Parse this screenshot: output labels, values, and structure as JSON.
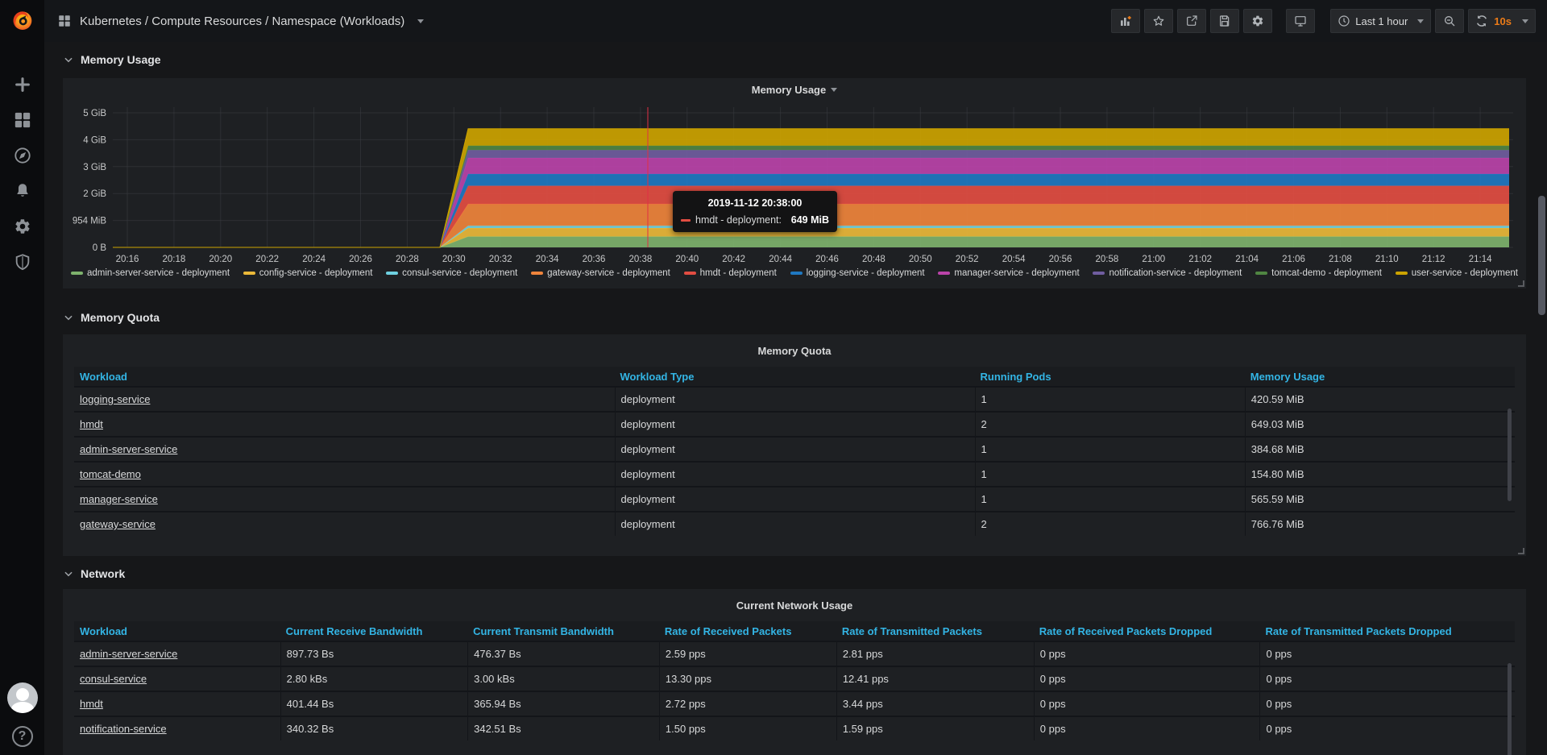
{
  "navbar": {
    "dashboard_title": "Kubernetes / Compute Resources / Namespace (Workloads)",
    "time_range_label": "Last 1 hour",
    "refresh_interval_label": "10s"
  },
  "sections": {
    "memory_usage": "Memory Usage",
    "memory_quota": "Memory Quota",
    "network": "Network"
  },
  "memory_usage_panel": {
    "title": "Memory Usage",
    "tooltip": {
      "timestamp": "2019-11-12 20:38:00",
      "series_label": "hmdt - deployment:",
      "value": "649 MiB",
      "series_color": "#E24D42"
    },
    "chart_data": {
      "type": "area",
      "stacked": true,
      "title": "Memory Usage",
      "x_tick_labels": [
        "20:16",
        "20:18",
        "20:20",
        "20:22",
        "20:24",
        "20:26",
        "20:28",
        "20:30",
        "20:32",
        "20:34",
        "20:36",
        "20:38",
        "20:40",
        "20:42",
        "20:44",
        "20:46",
        "20:48",
        "20:50",
        "20:52",
        "20:54",
        "20:56",
        "20:58",
        "21:00",
        "21:02",
        "21:04",
        "21:06",
        "21:08",
        "21:10",
        "21:12",
        "21:14"
      ],
      "y_tick_labels": [
        "0 B",
        "954 MiB",
        "2 GiB",
        "3 GiB",
        "4 GiB",
        "5 GiB"
      ],
      "y_tick_step_gb": 1,
      "rise_start_time": "20:29",
      "rise_full_time": "20:31",
      "crosshair_time": "20:38",
      "grid": true,
      "legend_position": "bottom",
      "series": [
        {
          "name": "admin-server-service - deployment",
          "color": "#7EB26D",
          "steady_mib": 385,
          "before_rise_mib": 0
        },
        {
          "name": "config-service - deployment",
          "color": "#EAB839",
          "steady_mib": 300,
          "before_rise_mib": 0
        },
        {
          "name": "consul-service - deployment",
          "color": "#6ED0E0",
          "steady_mib": 80,
          "before_rise_mib": 0
        },
        {
          "name": "gateway-service - deployment",
          "color": "#EF843C",
          "steady_mib": 767,
          "before_rise_mib": 0
        },
        {
          "name": "hmdt - deployment",
          "color": "#E24D42",
          "steady_mib": 649,
          "before_rise_mib": 0
        },
        {
          "name": "logging-service - deployment",
          "color": "#1F78C1",
          "steady_mib": 421,
          "before_rise_mib": 0
        },
        {
          "name": "manager-service - deployment",
          "color": "#BA43A9",
          "steady_mib": 566,
          "before_rise_mib": 0
        },
        {
          "name": "notification-service - deployment",
          "color": "#705DA0",
          "steady_mib": 280,
          "before_rise_mib": 0
        },
        {
          "name": "tomcat-demo - deployment",
          "color": "#508642",
          "steady_mib": 155,
          "before_rise_mib": 0
        },
        {
          "name": "user-service - deployment",
          "color": "#CCA300",
          "steady_mib": 600,
          "before_rise_mib": 0
        }
      ]
    }
  },
  "memory_quota_panel": {
    "title": "Memory Quota",
    "columns": [
      "Workload",
      "Workload Type",
      "Running Pods",
      "Memory Usage"
    ],
    "rows": [
      [
        "logging-service",
        "deployment",
        "1",
        "420.59 MiB"
      ],
      [
        "hmdt",
        "deployment",
        "2",
        "649.03 MiB"
      ],
      [
        "admin-server-service",
        "deployment",
        "1",
        "384.68 MiB"
      ],
      [
        "tomcat-demo",
        "deployment",
        "1",
        "154.80 MiB"
      ],
      [
        "manager-service",
        "deployment",
        "1",
        "565.59 MiB"
      ],
      [
        "gateway-service",
        "deployment",
        "2",
        "766.76 MiB"
      ]
    ]
  },
  "network_panel": {
    "title": "Current Network Usage",
    "columns": [
      "Workload",
      "Current Receive Bandwidth",
      "Current Transmit Bandwidth",
      "Rate of Received Packets",
      "Rate of Transmitted Packets",
      "Rate of Received Packets Dropped",
      "Rate of Transmitted Packets Dropped"
    ],
    "rows": [
      [
        "admin-server-service",
        "897.73 Bs",
        "476.37 Bs",
        "2.59 pps",
        "2.81 pps",
        "0 pps",
        "0 pps"
      ],
      [
        "consul-service",
        "2.80 kBs",
        "3.00 kBs",
        "13.30 pps",
        "12.41 pps",
        "0 pps",
        "0 pps"
      ],
      [
        "hmdt",
        "401.44 Bs",
        "365.94 Bs",
        "2.72 pps",
        "3.44 pps",
        "0 pps",
        "0 pps"
      ],
      [
        "notification-service",
        "340.32 Bs",
        "342.51 Bs",
        "1.50 pps",
        "1.59 pps",
        "0 pps",
        "0 pps"
      ]
    ]
  },
  "colors": {
    "page_bg": "#161719",
    "panel_bg": "#1e2023",
    "sidebar_bg": "#0b0c0e",
    "link_blue": "#33b5e5",
    "accent_orange": "#eb7b18",
    "crosshair_red": "#e02f44",
    "text": "#d8d9da"
  }
}
